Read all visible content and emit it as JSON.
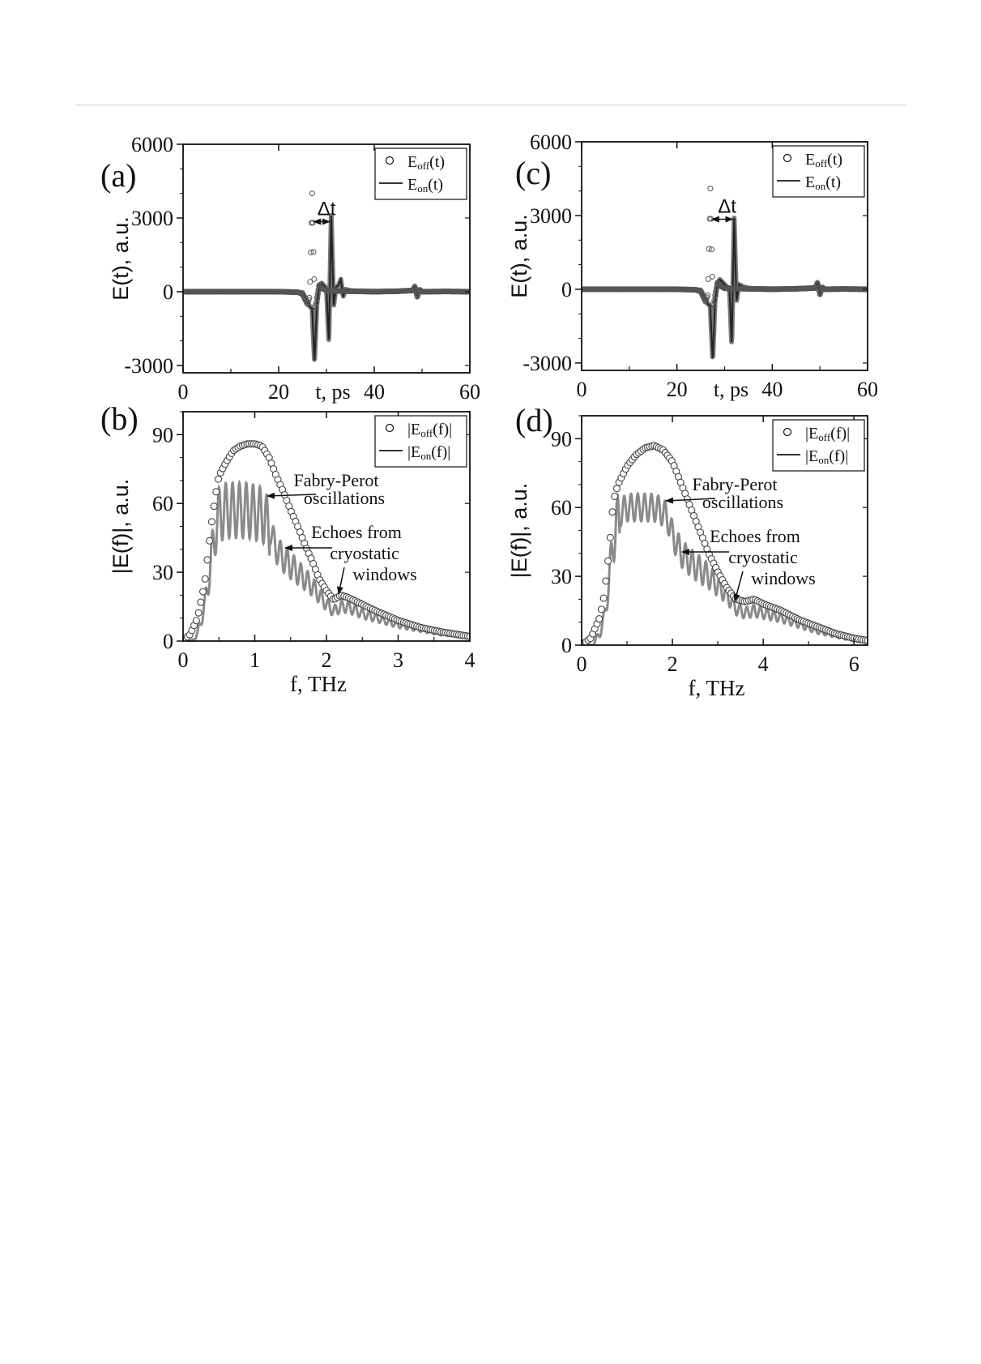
{
  "chart_data": [
    {
      "panel": "(a)",
      "type": "line",
      "xlabel": "t, ps",
      "ylabel": "E(t), a.u.",
      "xlim": [
        0,
        60
      ],
      "ylim": [
        -3300,
        6000
      ],
      "xticks": [
        0,
        20,
        40,
        60
      ],
      "yticks": [
        -3000,
        0,
        3000,
        6000
      ],
      "legend": {
        "placement": "top-right",
        "entries": [
          {
            "marker": "circle",
            "name": "E",
            "sub": "off",
            "arg": "(t)"
          },
          {
            "marker": "line",
            "name": "E",
            "sub": "on",
            "arg": "(t)"
          }
        ]
      },
      "annotation": "Δt",
      "series": [
        {
          "name": "E_off(t)",
          "style": "circles",
          "x": [
            0,
            20,
            24,
            25,
            25.5,
            26,
            26.5,
            27,
            27.3,
            27.6,
            28,
            28.5,
            29,
            30,
            32,
            35,
            40,
            45,
            48,
            48.5,
            49,
            49.5,
            50,
            55,
            60
          ],
          "y": [
            0,
            0,
            -20,
            -100,
            -300,
            -500,
            -200,
            4000,
            1500,
            -800,
            -250,
            300,
            150,
            40,
            30,
            20,
            0,
            20,
            50,
            200,
            -200,
            80,
            0,
            10,
            0
          ]
        },
        {
          "name": "E_on(t)",
          "style": "line",
          "x": [
            0,
            20,
            25,
            26,
            26.5,
            27,
            27.5,
            28,
            28.5,
            29,
            29.5,
            30,
            30.5,
            31,
            31.5,
            32,
            32.5,
            33,
            33.5,
            34,
            35,
            36,
            40,
            45,
            48,
            48.5,
            49,
            49.5,
            50,
            55,
            60
          ],
          "y": [
            0,
            0,
            -30,
            -400,
            -600,
            -700,
            -2900,
            -500,
            250,
            350,
            250,
            150,
            -2100,
            3100,
            -600,
            200,
            250,
            500,
            -200,
            100,
            50,
            30,
            20,
            10,
            50,
            250,
            -200,
            100,
            0,
            10,
            0
          ]
        }
      ]
    },
    {
      "panel": "(b)",
      "type": "line",
      "xlabel": "f, THz",
      "ylabel": "|E(f)|, a.u.",
      "xlim": [
        0,
        4
      ],
      "ylim": [
        0,
        100
      ],
      "xticks": [
        0,
        1,
        2,
        3,
        4
      ],
      "yticks": [
        0,
        30,
        60,
        90
      ],
      "legend": {
        "placement": "top-right",
        "entries": [
          {
            "marker": "circle",
            "name": "|E",
            "sub": "off",
            "arg": "(f)|"
          },
          {
            "marker": "line",
            "name": "|E",
            "sub": "on",
            "arg": "(f)|"
          }
        ]
      },
      "annotations": [
        {
          "lines": [
            "Fabry-Perot",
            "oscillations"
          ]
        },
        {
          "lines": [
            "Echoes from",
            "cryostatic",
            "windows"
          ]
        }
      ],
      "series": [
        {
          "name": "|E_off(f)|",
          "style": "circles",
          "x": [
            0,
            0.1,
            0.2,
            0.3,
            0.4,
            0.45,
            0.5,
            0.6,
            0.7,
            0.8,
            0.9,
            1.0,
            1.1,
            1.2,
            1.3,
            1.4,
            1.5,
            1.6,
            1.7,
            1.8,
            1.9,
            2.0,
            2.1,
            2.2,
            2.3,
            2.5,
            2.7,
            3.0,
            3.3,
            3.6,
            4.0
          ],
          "y": [
            0,
            3,
            10,
            25,
            52,
            63,
            72,
            78,
            83,
            85,
            86,
            86,
            85,
            80,
            72,
            65,
            57,
            50,
            42,
            35,
            27,
            22,
            18,
            20,
            19,
            16,
            13,
            9,
            6,
            4,
            2
          ]
        },
        {
          "name": "|E_on(f)|",
          "style": "oscillating-line",
          "x": [
            0,
            0.1,
            0.2,
            0.3,
            0.4,
            0.45,
            0.5,
            0.6,
            0.7,
            0.8,
            0.9,
            1.0,
            1.1,
            1.15,
            1.2,
            1.3,
            1.4,
            1.5,
            1.6,
            1.7,
            1.8,
            1.9,
            2.0,
            2.1,
            2.2,
            2.3,
            2.5,
            2.7,
            3.0,
            3.3,
            3.6,
            4.0
          ],
          "y": [
            0,
            2,
            6,
            18,
            40,
            52,
            58,
            60,
            60,
            60,
            60,
            59,
            58,
            57,
            50,
            40,
            36,
            33,
            30,
            27,
            24,
            20,
            16,
            13,
            15,
            15,
            12,
            10,
            7,
            5,
            3,
            2
          ]
        }
      ]
    },
    {
      "panel": "(c)",
      "type": "line",
      "xlabel": "t, ps",
      "ylabel": "E(t), a.u.",
      "xlim": [
        0,
        60
      ],
      "ylim": [
        -3300,
        6000
      ],
      "xticks": [
        0,
        20,
        40,
        60
      ],
      "yticks": [
        -3000,
        0,
        3000,
        6000
      ],
      "legend": {
        "placement": "top-right",
        "entries": [
          {
            "marker": "circle",
            "name": "E",
            "sub": "off",
            "arg": "(t)"
          },
          {
            "marker": "line",
            "name": "E",
            "sub": "on",
            "arg": "(t)"
          }
        ]
      },
      "annotation": "Δt",
      "series": [
        {
          "name": "E_off(t)",
          "style": "circles",
          "x": [
            0,
            20,
            24,
            25,
            25.5,
            26,
            26.5,
            27,
            27.3,
            27.6,
            28,
            28.5,
            29,
            30,
            32,
            35,
            40,
            45,
            49,
            49.5,
            50,
            50.5,
            51,
            55,
            60
          ],
          "y": [
            0,
            0,
            -20,
            -100,
            -300,
            -500,
            -200,
            4100,
            1500,
            -800,
            -250,
            300,
            150,
            40,
            30,
            20,
            0,
            20,
            50,
            250,
            -200,
            80,
            0,
            10,
            0
          ]
        },
        {
          "name": "E_on(t)",
          "style": "line",
          "x": [
            0,
            20,
            25,
            26,
            26.5,
            27,
            27.5,
            28,
            28.5,
            29,
            29.5,
            30,
            30.5,
            31,
            31.5,
            32,
            32.5,
            33,
            33.5,
            34,
            35,
            36,
            40,
            45,
            49,
            49.5,
            50,
            50.5,
            51,
            55,
            60
          ],
          "y": [
            0,
            0,
            -30,
            -400,
            -600,
            -700,
            -2900,
            -500,
            250,
            400,
            300,
            200,
            100,
            50,
            -2300,
            2900,
            -500,
            200,
            150,
            100,
            50,
            30,
            20,
            10,
            50,
            300,
            -200,
            100,
            0,
            10,
            0
          ]
        }
      ]
    },
    {
      "panel": "(d)",
      "type": "line",
      "xlabel": "f, THz",
      "ylabel": "|E(f)|, a.u.",
      "xlim": [
        0,
        6.3
      ],
      "ylim": [
        0,
        100
      ],
      "xticks": [
        0,
        2,
        4,
        6
      ],
      "yticks": [
        0,
        30,
        60,
        90
      ],
      "legend": {
        "placement": "top-right",
        "entries": [
          {
            "marker": "circle",
            "name": "|E",
            "sub": "off",
            "arg": "(f)|"
          },
          {
            "marker": "line",
            "name": "|E",
            "sub": "on",
            "arg": "(f)|"
          }
        ]
      },
      "annotations": [
        {
          "lines": [
            "Fabry-Perot",
            "oscillations"
          ]
        },
        {
          "lines": [
            "Echoes from",
            "cryostatic",
            "windows"
          ]
        }
      ],
      "series": [
        {
          "name": "|E_off(f)|",
          "style": "circles",
          "x": [
            0,
            0.2,
            0.4,
            0.5,
            0.6,
            0.7,
            0.8,
            1.0,
            1.2,
            1.4,
            1.6,
            1.8,
            2.0,
            2.2,
            2.4,
            2.6,
            2.8,
            3.0,
            3.2,
            3.4,
            3.6,
            3.8,
            4.0,
            4.4,
            4.8,
            5.2,
            5.6,
            6.0,
            6.3
          ],
          "y": [
            0,
            3,
            12,
            22,
            40,
            63,
            70,
            78,
            83,
            86,
            87,
            85,
            80,
            70,
            60,
            50,
            40,
            32,
            25,
            20,
            19,
            20,
            18,
            15,
            11,
            8,
            5,
            3,
            2
          ]
        },
        {
          "name": "|E_on(f)|",
          "style": "oscillating-line",
          "x": [
            0,
            0.2,
            0.4,
            0.5,
            0.6,
            0.7,
            0.8,
            1.0,
            1.2,
            1.4,
            1.6,
            1.8,
            1.9,
            2.0,
            2.2,
            2.4,
            2.6,
            2.8,
            3.0,
            3.2,
            3.4,
            3.6,
            3.8,
            4.0,
            4.4,
            4.8,
            5.2,
            5.6,
            6.0,
            6.3
          ],
          "y": [
            0,
            2,
            8,
            15,
            30,
            50,
            57,
            60,
            60,
            60,
            60,
            58,
            55,
            48,
            40,
            36,
            33,
            30,
            26,
            22,
            16,
            14,
            15,
            14,
            12,
            9,
            6,
            4,
            2,
            1
          ]
        }
      ]
    }
  ]
}
